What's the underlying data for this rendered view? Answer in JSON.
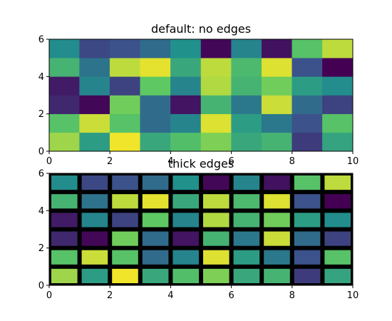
{
  "chart_data": [
    {
      "type": "heatmap",
      "title": "default: no edges",
      "colormap": "viridis",
      "edges": "none",
      "xlim": [
        0,
        10
      ],
      "ylim": [
        0,
        6
      ],
      "xticks": [
        "0",
        "2",
        "4",
        "6",
        "8",
        "10"
      ],
      "yticks": [
        "0",
        "2",
        "4",
        "6"
      ],
      "values": [
        [
          0.85,
          0.55,
          0.98,
          0.6,
          0.7,
          0.8,
          0.6,
          0.65,
          0.18,
          0.58
        ],
        [
          0.72,
          0.92,
          0.72,
          0.35,
          0.45,
          0.95,
          0.55,
          0.4,
          0.25,
          0.72
        ],
        [
          0.12,
          0.02,
          0.78,
          0.35,
          0.06,
          0.65,
          0.4,
          0.92,
          0.35,
          0.2
        ],
        [
          0.08,
          0.45,
          0.2,
          0.75,
          0.45,
          0.88,
          0.65,
          0.78,
          0.55,
          0.48
        ],
        [
          0.65,
          0.38,
          0.9,
          0.96,
          0.6,
          0.9,
          0.68,
          0.95,
          0.25,
          0.0
        ],
        [
          0.48,
          0.22,
          0.25,
          0.35,
          0.5,
          0.02,
          0.45,
          0.05,
          0.72,
          0.9
        ]
      ]
    },
    {
      "type": "heatmap",
      "title": "thick edges",
      "colormap": "viridis",
      "edges": "black",
      "xlim": [
        0,
        10
      ],
      "ylim": [
        0,
        6
      ],
      "xticks": [
        "0",
        "2",
        "4",
        "6",
        "8",
        "10"
      ],
      "yticks": [
        "0",
        "2",
        "4",
        "6"
      ],
      "values": [
        [
          0.85,
          0.55,
          0.98,
          0.6,
          0.7,
          0.8,
          0.6,
          0.65,
          0.18,
          0.58
        ],
        [
          0.72,
          0.92,
          0.72,
          0.35,
          0.45,
          0.95,
          0.55,
          0.4,
          0.25,
          0.72
        ],
        [
          0.12,
          0.02,
          0.78,
          0.35,
          0.06,
          0.65,
          0.4,
          0.92,
          0.35,
          0.2
        ],
        [
          0.08,
          0.45,
          0.2,
          0.75,
          0.45,
          0.88,
          0.65,
          0.78,
          0.55,
          0.48
        ],
        [
          0.65,
          0.38,
          0.9,
          0.96,
          0.6,
          0.9,
          0.68,
          0.95,
          0.25,
          0.0
        ],
        [
          0.48,
          0.22,
          0.25,
          0.35,
          0.5,
          0.02,
          0.45,
          0.05,
          0.72,
          0.9
        ]
      ]
    }
  ]
}
